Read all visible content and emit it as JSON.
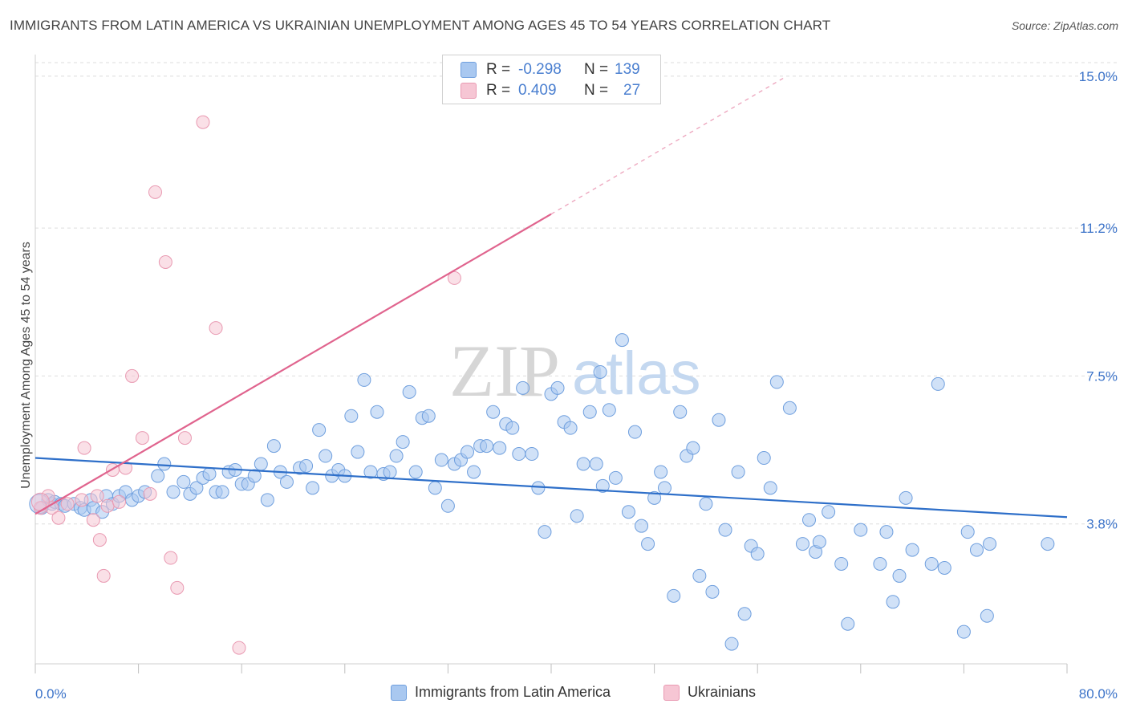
{
  "title": "IMMIGRANTS FROM LATIN AMERICA VS UKRAINIAN UNEMPLOYMENT AMONG AGES 45 TO 54 YEARS CORRELATION CHART",
  "source": "Source: ZipAtlas.com",
  "watermark": "ZIPatlas",
  "colors": {
    "blue_fill": "#a9c8f0",
    "blue_stroke": "#6f9fde",
    "blue_line": "#2e6fc9",
    "pink_fill": "#f6c6d4",
    "pink_stroke": "#e99ab2",
    "pink_line": "#e0648e",
    "axis_text": "#3d74c9"
  },
  "legend": {
    "rows": [
      {
        "r_label": "R =",
        "r_value": "-0.298",
        "n_label": "N =",
        "n_value": "139",
        "color": "blue"
      },
      {
        "r_label": "R =",
        "r_value": "0.409",
        "n_label": "N =",
        "n_value": "27",
        "color": "pink"
      }
    ]
  },
  "chart_data": {
    "type": "scatter",
    "title": "IMMIGRANTS FROM LATIN AMERICA VS UKRAINIAN UNEMPLOYMENT AMONG AGES 45 TO 54 YEARS CORRELATION CHART",
    "xlabel": "",
    "ylabel": "Unemployment Among Ages 45 to 54 years",
    "xlim": [
      0,
      80
    ],
    "ylim": [
      0.3,
      15.4
    ],
    "x_tick_labels": [
      "0.0%",
      "80.0%"
    ],
    "y_ticks": [
      3.8,
      7.5,
      11.2,
      15.0
    ],
    "y_tick_labels": [
      "3.8%",
      "7.5%",
      "11.2%",
      "15.0%"
    ],
    "grid": true,
    "legend_position": "bottom",
    "series": [
      {
        "name": "Immigrants from Latin America",
        "color": "blue",
        "trend": {
          "x0": 0,
          "y0": 5.45,
          "x1": 80,
          "y1": 3.97
        },
        "points": [
          [
            0.5,
            4.2
          ],
          [
            1,
            4.4
          ],
          [
            1.3,
            4.3
          ],
          [
            1.5,
            4.35
          ],
          [
            2,
            4.3
          ],
          [
            2.3,
            4.25
          ],
          [
            3,
            4.3
          ],
          [
            3.5,
            4.2
          ],
          [
            3.8,
            4.15
          ],
          [
            4.3,
            4.4
          ],
          [
            4.5,
            4.2
          ],
          [
            5.2,
            4.1
          ],
          [
            5.5,
            4.5
          ],
          [
            6,
            4.3
          ],
          [
            6.5,
            4.5
          ],
          [
            7,
            4.6
          ],
          [
            7.5,
            4.4
          ],
          [
            8,
            4.5
          ],
          [
            8.5,
            4.6
          ],
          [
            9.5,
            5.0
          ],
          [
            10,
            5.3
          ],
          [
            10.7,
            4.6
          ],
          [
            11.5,
            4.85
          ],
          [
            12,
            4.55
          ],
          [
            12.5,
            4.7
          ],
          [
            13,
            4.95
          ],
          [
            13.5,
            5.05
          ],
          [
            14,
            4.6
          ],
          [
            14.5,
            4.6
          ],
          [
            15,
            5.1
          ],
          [
            15.5,
            5.15
          ],
          [
            16,
            4.8
          ],
          [
            16.5,
            4.8
          ],
          [
            17,
            5.0
          ],
          [
            17.5,
            5.3
          ],
          [
            18,
            4.4
          ],
          [
            18.5,
            5.75
          ],
          [
            19,
            5.1
          ],
          [
            19.5,
            4.85
          ],
          [
            20.5,
            5.2
          ],
          [
            21,
            5.25
          ],
          [
            21.5,
            4.7
          ],
          [
            22,
            6.15
          ],
          [
            22.5,
            5.5
          ],
          [
            23,
            5.0
          ],
          [
            23.5,
            5.15
          ],
          [
            24,
            5.0
          ],
          [
            24.5,
            6.5
          ],
          [
            25,
            5.6
          ],
          [
            25.5,
            7.4
          ],
          [
            26,
            5.1
          ],
          [
            26.5,
            6.6
          ],
          [
            27,
            5.05
          ],
          [
            27.5,
            5.1
          ],
          [
            28,
            5.5
          ],
          [
            28.5,
            5.85
          ],
          [
            29,
            7.1
          ],
          [
            29.5,
            5.1
          ],
          [
            30,
            6.45
          ],
          [
            30.5,
            6.5
          ],
          [
            31,
            4.7
          ],
          [
            31.5,
            5.4
          ],
          [
            32,
            4.25
          ],
          [
            32.5,
            5.3
          ],
          [
            33,
            5.4
          ],
          [
            33.5,
            5.6
          ],
          [
            34,
            5.1
          ],
          [
            34.5,
            5.75
          ],
          [
            35,
            5.75
          ],
          [
            35.5,
            6.6
          ],
          [
            36,
            5.7
          ],
          [
            36.5,
            6.3
          ],
          [
            37,
            6.2
          ],
          [
            37.5,
            5.55
          ],
          [
            37.8,
            7.2
          ],
          [
            38.5,
            5.55
          ],
          [
            39,
            4.7
          ],
          [
            39.5,
            3.6
          ],
          [
            40,
            7.05
          ],
          [
            40.5,
            7.2
          ],
          [
            41,
            6.35
          ],
          [
            41.5,
            6.2
          ],
          [
            42,
            4.0
          ],
          [
            42.5,
            5.3
          ],
          [
            43,
            6.6
          ],
          [
            43.5,
            5.3
          ],
          [
            43.8,
            7.6
          ],
          [
            44,
            4.75
          ],
          [
            44.5,
            6.65
          ],
          [
            45,
            4.95
          ],
          [
            45.5,
            8.4
          ],
          [
            46,
            4.1
          ],
          [
            46.5,
            6.1
          ],
          [
            47,
            3.75
          ],
          [
            47.5,
            3.3
          ],
          [
            48,
            4.45
          ],
          [
            48.5,
            5.1
          ],
          [
            48.8,
            4.7
          ],
          [
            49.5,
            2.0
          ],
          [
            50,
            6.6
          ],
          [
            50.5,
            5.5
          ],
          [
            51,
            5.7
          ],
          [
            51.5,
            2.5
          ],
          [
            52,
            4.3
          ],
          [
            52.5,
            2.1
          ],
          [
            53,
            6.4
          ],
          [
            53.5,
            3.65
          ],
          [
            54,
            0.8
          ],
          [
            54.5,
            5.1
          ],
          [
            55,
            1.55
          ],
          [
            55.5,
            3.25
          ],
          [
            56,
            3.05
          ],
          [
            56.5,
            5.45
          ],
          [
            57,
            4.7
          ],
          [
            57.5,
            7.35
          ],
          [
            58.5,
            6.7
          ],
          [
            59.5,
            3.3
          ],
          [
            60,
            3.9
          ],
          [
            60.5,
            3.1
          ],
          [
            60.8,
            3.35
          ],
          [
            61.5,
            4.1
          ],
          [
            62.5,
            2.8
          ],
          [
            63,
            1.3
          ],
          [
            64,
            3.65
          ],
          [
            65.5,
            2.8
          ],
          [
            66,
            3.6
          ],
          [
            66.5,
            1.85
          ],
          [
            67,
            2.5
          ],
          [
            67.5,
            4.45
          ],
          [
            68,
            3.15
          ],
          [
            69.5,
            2.8
          ],
          [
            70,
            7.3
          ],
          [
            70.5,
            2.7
          ],
          [
            72,
            1.1
          ],
          [
            72.3,
            3.6
          ],
          [
            73,
            3.15
          ],
          [
            73.8,
            1.5
          ],
          [
            74,
            3.3
          ],
          [
            78.5,
            3.3
          ]
        ]
      },
      {
        "name": "Ukrainians",
        "color": "pink",
        "trend": {
          "x0": 0,
          "y0": 4.05,
          "x1": 40,
          "y1": 11.55
        },
        "trend_dashed": {
          "x0": 40,
          "y0": 11.55,
          "x1": 58,
          "y1": 14.95
        },
        "points": [
          [
            0.4,
            4.2
          ],
          [
            1,
            4.5
          ],
          [
            1.3,
            4.2
          ],
          [
            1.8,
            3.95
          ],
          [
            2.5,
            4.3
          ],
          [
            3.6,
            4.4
          ],
          [
            3.8,
            5.7
          ],
          [
            4.5,
            3.9
          ],
          [
            4.8,
            4.5
          ],
          [
            5,
            3.4
          ],
          [
            5.3,
            2.5
          ],
          [
            5.6,
            4.25
          ],
          [
            6.0,
            5.15
          ],
          [
            7.0,
            5.2
          ],
          [
            7.5,
            7.5
          ],
          [
            8.3,
            5.95
          ],
          [
            8.9,
            4.55
          ],
          [
            9.3,
            12.1
          ],
          [
            10.1,
            10.35
          ],
          [
            10.5,
            2.95
          ],
          [
            11.0,
            2.2
          ],
          [
            11.6,
            5.95
          ],
          [
            13.0,
            13.85
          ],
          [
            14.0,
            8.7
          ],
          [
            15.8,
            0.7
          ],
          [
            32.5,
            9.95
          ],
          [
            6.5,
            4.35
          ]
        ]
      }
    ]
  }
}
